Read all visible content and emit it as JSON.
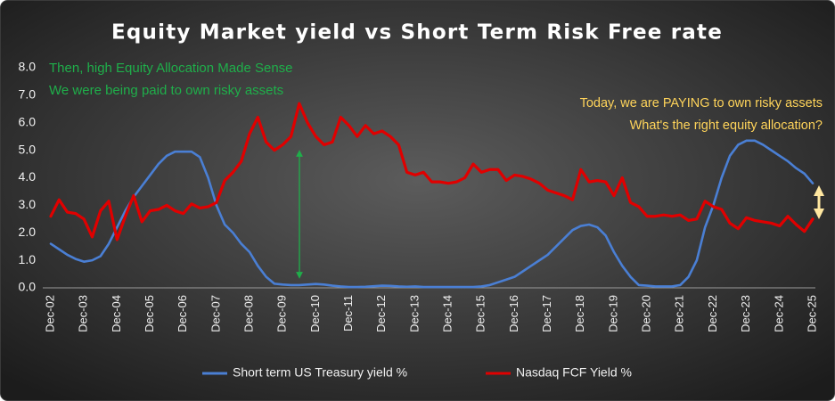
{
  "chart_data": {
    "type": "line",
    "title": "Equity Market  yield vs Short Term Risk Free rate",
    "annotations": [
      "Then, high Equity Allocation Made Sense",
      "We were being paid to own risky assets",
      "Today, we are PAYING to own risky assets",
      "What's the right equity allocation?"
    ],
    "categories": [
      "Dec-02",
      null,
      null,
      null,
      "Dec-03",
      null,
      null,
      null,
      "Dec-04",
      null,
      null,
      null,
      "Dec-05",
      null,
      null,
      null,
      "Dec-06",
      null,
      null,
      null,
      "Dec-07",
      null,
      null,
      null,
      "Dec-08",
      null,
      null,
      null,
      "Dec-09",
      null,
      null,
      null,
      "Dec-10",
      null,
      null,
      null,
      "Dec-11",
      null,
      null,
      null,
      "Dec-12",
      null,
      null,
      null,
      "Dec-13",
      null,
      null,
      null,
      "Dec-14",
      null,
      null,
      null,
      "Dec-15",
      null,
      null,
      null,
      "Dec-16",
      null,
      null,
      null,
      "Dec-17",
      null,
      null,
      null,
      "Dec-18",
      null,
      null,
      null,
      "Dec-19",
      null,
      null,
      null,
      "Dec-20",
      null,
      null,
      null,
      "Dec-21",
      null,
      null,
      null,
      "Dec-22",
      null,
      null,
      null,
      "Dec-23",
      null,
      null,
      null,
      "Dec-24",
      null,
      null,
      null,
      "Dec-25"
    ],
    "series": [
      {
        "name": "Short term US Treasury yield %",
        "color": "#4a7fd4",
        "values": [
          1.6,
          1.4,
          1.2,
          1.05,
          0.95,
          1.0,
          1.15,
          1.6,
          2.2,
          2.8,
          3.3,
          3.7,
          4.1,
          4.5,
          4.8,
          4.95,
          4.95,
          4.95,
          4.75,
          4.0,
          3.0,
          2.3,
          2.0,
          1.6,
          1.3,
          0.8,
          0.4,
          0.15,
          0.12,
          0.1,
          0.1,
          0.12,
          0.14,
          0.12,
          0.08,
          0.05,
          0.03,
          0.03,
          0.04,
          0.06,
          0.08,
          0.07,
          0.05,
          0.04,
          0.05,
          0.03,
          0.03,
          0.03,
          0.03,
          0.03,
          0.03,
          0.03,
          0.05,
          0.1,
          0.2,
          0.3,
          0.4,
          0.6,
          0.8,
          1.0,
          1.2,
          1.5,
          1.8,
          2.1,
          2.25,
          2.3,
          2.2,
          1.9,
          1.3,
          0.8,
          0.4,
          0.1,
          0.08,
          0.05,
          0.05,
          0.05,
          0.1,
          0.4,
          1.0,
          2.2,
          3.0,
          4.0,
          4.8,
          5.2,
          5.35,
          5.35,
          5.2,
          5.0,
          4.8,
          4.6,
          4.35,
          4.15,
          3.8
        ]
      },
      {
        "name": "Nasdaq FCF Yield %",
        "color": "#e00000",
        "values": [
          2.6,
          3.2,
          2.75,
          2.7,
          2.5,
          1.85,
          2.8,
          3.15,
          1.75,
          2.6,
          3.35,
          2.4,
          2.8,
          2.85,
          3.0,
          2.8,
          2.7,
          3.05,
          2.9,
          2.95,
          3.1,
          3.9,
          4.2,
          4.6,
          5.6,
          6.2,
          5.3,
          5.0,
          5.2,
          5.5,
          6.7,
          6.0,
          5.5,
          5.2,
          5.3,
          6.2,
          5.9,
          5.5,
          5.9,
          5.6,
          5.7,
          5.5,
          5.2,
          4.2,
          4.1,
          4.2,
          3.85,
          3.85,
          3.8,
          3.85,
          4.0,
          4.5,
          4.2,
          4.3,
          4.3,
          3.9,
          4.1,
          4.05,
          3.95,
          3.8,
          3.55,
          3.45,
          3.35,
          3.2,
          4.3,
          3.85,
          3.9,
          3.85,
          3.35,
          4.0,
          3.1,
          2.95,
          2.6,
          2.6,
          2.65,
          2.6,
          2.65,
          2.45,
          2.5,
          3.15,
          2.95,
          2.85,
          2.35,
          2.15,
          2.55,
          2.45,
          2.4,
          2.35,
          2.25,
          2.6,
          2.3,
          2.05,
          2.5
        ]
      }
    ],
    "ylim": [
      0,
      8
    ],
    "yticks": [
      {
        "value": 0,
        "label": "0.0"
      },
      {
        "value": 1,
        "label": "1.0"
      },
      {
        "value": 2,
        "label": "2.0"
      },
      {
        "value": 3,
        "label": "3.0"
      },
      {
        "value": 4,
        "label": "4.0"
      },
      {
        "value": 5,
        "label": "5.0"
      },
      {
        "value": 6,
        "label": "6.0"
      },
      {
        "value": 7,
        "label": "7.0"
      },
      {
        "value": 8,
        "label": "8.0"
      }
    ],
    "grid": false,
    "legend": "bottom"
  }
}
